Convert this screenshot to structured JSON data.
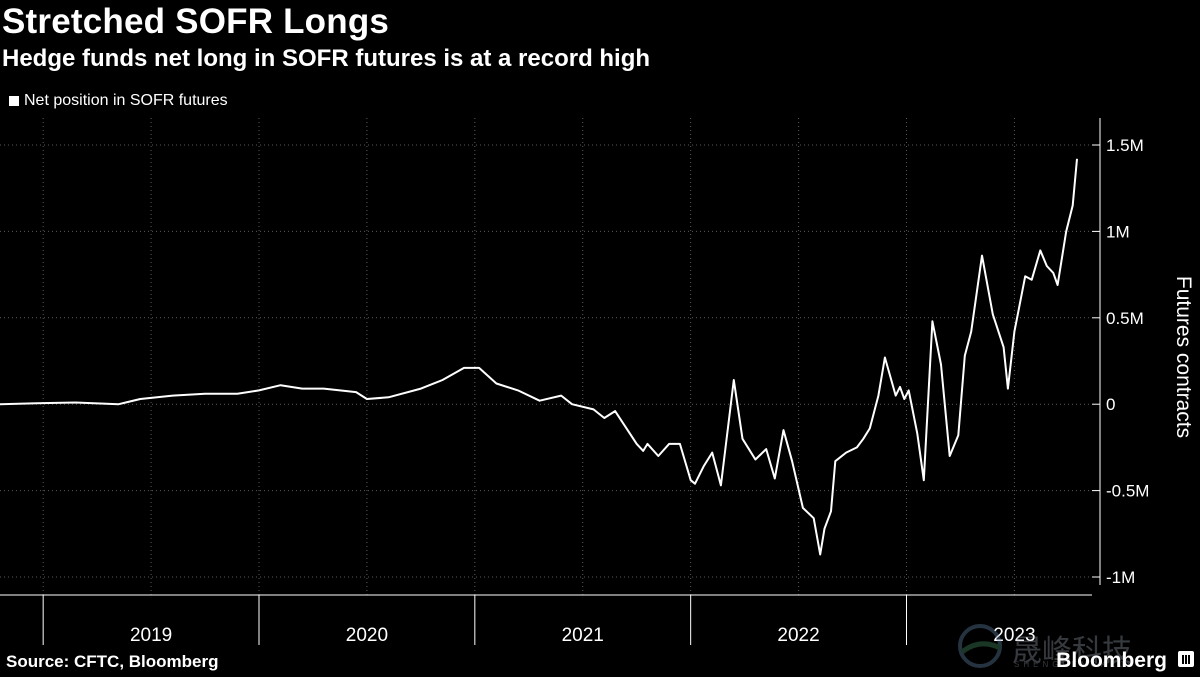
{
  "header": {
    "title": "Stretched SOFR Longs",
    "subtitle": "Hedge funds net long in SOFR futures is at a record high"
  },
  "legend": {
    "label": "Net position in SOFR futures"
  },
  "footer": {
    "source": "Source: CFTC, Bloomberg",
    "brand": "Bloomberg"
  },
  "watermark": {
    "text": "晟峰科技",
    "sub": "SHENGFENGKEJI"
  },
  "colors": {
    "background": "#000000",
    "line": "#ffffff",
    "grid": "#5a5a5a"
  },
  "chart_data": {
    "type": "line",
    "title": "Stretched SOFR Longs",
    "subtitle": "Hedge funds net long in SOFR futures is at a record high",
    "ylabel": "Futures contracts",
    "xlabel": "",
    "ylim": [
      -1000000,
      1500000
    ],
    "xlim": [
      2018.8,
      2023.79
    ],
    "yticks": [
      {
        "value": 1500000,
        "label": "1.5M"
      },
      {
        "value": 1000000,
        "label": "1M"
      },
      {
        "value": 500000,
        "label": "0.5M"
      },
      {
        "value": 0,
        "label": "0"
      },
      {
        "value": -500000,
        "label": "-0.5M"
      },
      {
        "value": -1000000,
        "label": "-1M"
      }
    ],
    "xticks": [
      {
        "label": "2019",
        "center": 2019.5
      },
      {
        "label": "2020",
        "center": 2020.5
      },
      {
        "label": "2021",
        "center": 2021.5
      },
      {
        "label": "2022",
        "center": 2022.5
      },
      {
        "label": "2023",
        "center": 2023.5
      }
    ],
    "year_boundaries": [
      2019,
      2020,
      2021,
      2022,
      2023
    ],
    "grid": true,
    "legend_position": "top-left",
    "series": [
      {
        "name": "Net position in SOFR futures",
        "x": [
          2018.8,
          2018.97,
          2019.15,
          2019.35,
          2019.45,
          2019.6,
          2019.75,
          2019.9,
          2020.0,
          2020.1,
          2020.2,
          2020.25,
          2020.3,
          2020.45,
          2020.5,
          2020.6,
          2020.75,
          2020.85,
          2020.95,
          2021.02,
          2021.1,
          2021.2,
          2021.3,
          2021.4,
          2021.45,
          2021.55,
          2021.6,
          2021.65,
          2021.75,
          2021.78,
          2021.8,
          2021.85,
          2021.9,
          2021.95,
          2022.0,
          2022.02,
          2022.06,
          2022.1,
          2022.14,
          2022.2,
          2022.24,
          2022.3,
          2022.35,
          2022.39,
          2022.43,
          2022.47,
          2022.52,
          2022.57,
          2022.6,
          2022.62,
          2022.65,
          2022.67,
          2022.72,
          2022.77,
          2022.8,
          2022.83,
          2022.87,
          2022.9,
          2022.95,
          2022.97,
          2022.99,
          2023.01,
          2023.05,
          2023.08,
          2023.12,
          2023.16,
          2023.2,
          2023.24,
          2023.27,
          2023.3,
          2023.35,
          2023.4,
          2023.45,
          2023.47,
          2023.5,
          2023.55,
          2023.58,
          2023.62,
          2023.65,
          2023.68,
          2023.7,
          2023.74,
          2023.77,
          2023.79
        ],
        "y": [
          0,
          5000,
          10000,
          0,
          30000,
          50000,
          60000,
          60000,
          80000,
          110000,
          90000,
          90000,
          90000,
          70000,
          30000,
          40000,
          90000,
          140000,
          210000,
          210000,
          120000,
          80000,
          20000,
          50000,
          0,
          -30000,
          -80000,
          -40000,
          -230000,
          -270000,
          -230000,
          -300000,
          -230000,
          -230000,
          -440000,
          -460000,
          -360000,
          -280000,
          -470000,
          140000,
          -200000,
          -320000,
          -260000,
          -430000,
          -150000,
          -330000,
          -600000,
          -660000,
          -870000,
          -720000,
          -620000,
          -330000,
          -280000,
          -250000,
          -200000,
          -140000,
          50000,
          270000,
          50000,
          100000,
          30000,
          80000,
          -170000,
          -440000,
          480000,
          230000,
          -300000,
          -180000,
          280000,
          420000,
          860000,
          520000,
          330000,
          90000,
          420000,
          740000,
          720000,
          890000,
          800000,
          760000,
          690000,
          1000000,
          1150000,
          1420000
        ]
      }
    ]
  }
}
